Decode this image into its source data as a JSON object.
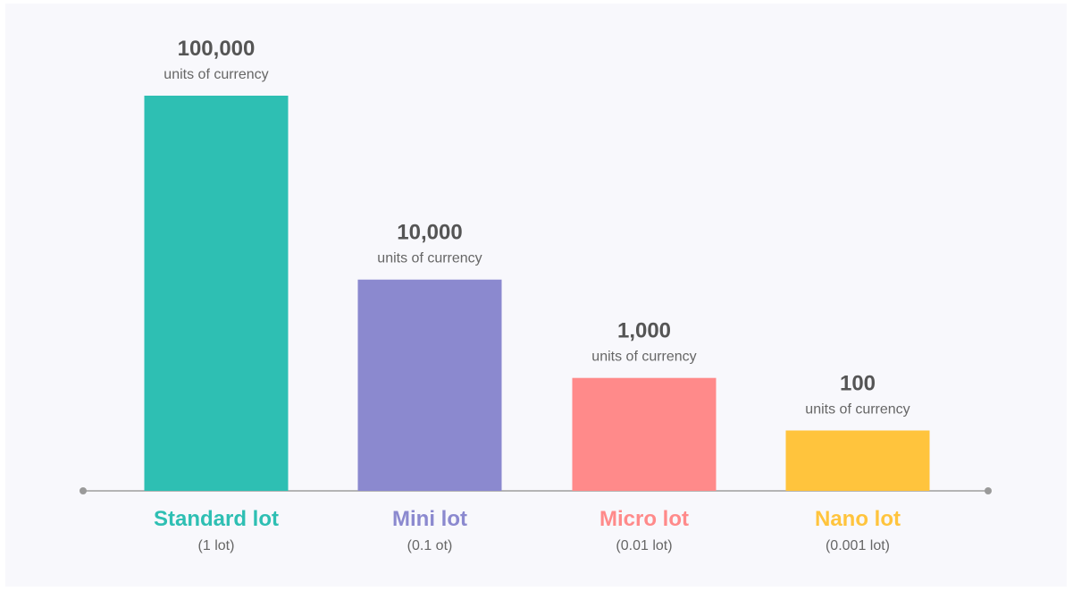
{
  "chart_data": {
    "type": "bar",
    "title": "",
    "xlabel": "",
    "ylabel": "",
    "categories": [
      "Standard lot",
      "Mini lot",
      "Micro lot",
      "Nano lot"
    ],
    "category_subtitles": [
      "(1 lot)",
      "(0.1 ot)",
      "(0.01 lot)",
      "(0.001 lot)"
    ],
    "value_labels": [
      "100,000",
      "10,000",
      "1,000",
      "100"
    ],
    "values": [
      100000,
      10000,
      1000,
      100
    ],
    "value_unit_label": "units of currency",
    "colors": [
      "#2ebfb3",
      "#8b89cf",
      "#ff8a8a",
      "#ffc43d"
    ],
    "axis_color": "#b5b5b5",
    "grid": false,
    "legend": "none"
  }
}
